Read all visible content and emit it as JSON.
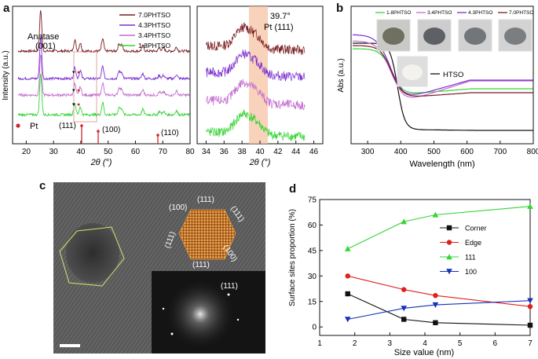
{
  "panels": {
    "a": "a",
    "b": "b",
    "c": "c",
    "d": "d"
  },
  "panel_a": {
    "ylabel": "Intensity (a.u.)",
    "xlabel": "2θ (°)",
    "xticks": [
      "20",
      "30",
      "40",
      "50",
      "60",
      "70",
      "80"
    ],
    "legend": [
      "7.0PHTSO",
      "4.3PHTSO",
      "3.4PHTSO",
      "1.8PHTSO"
    ],
    "anatase_label": "Anatase",
    "anatase_plane": "(001)",
    "pt_label": "Pt",
    "pt_planes": [
      "(111)",
      "(100)",
      "(110)"
    ]
  },
  "panel_a2": {
    "xlabel": "2θ (°)",
    "xticks": [
      "34",
      "36",
      "38",
      "40",
      "42",
      "44",
      "46"
    ],
    "peak_label": "39.7°",
    "peak_plane": "Pt (111)"
  },
  "panel_b": {
    "ylabel": "Abs (a.u.)",
    "xlabel": "Wavelength (nm)",
    "xticks": [
      "300",
      "400",
      "500",
      "600",
      "700",
      "800"
    ],
    "legend": [
      "1.8PHTSO",
      "3.4PHTSO",
      "4.3PHTSO",
      "7.0PHTSO"
    ],
    "htso_label": "HTSO"
  },
  "panel_c": {
    "facets": [
      "(100)",
      "(111)",
      "(111)",
      "(100)",
      "(111)",
      "(111)"
    ],
    "fft_label": "(111)"
  },
  "chart_data": [
    {
      "type": "line",
      "panel": "d",
      "xlabel": "Size value (nm)",
      "ylabel": "Surface sites proportion (%)",
      "xlim": [
        1,
        7
      ],
      "ylim": [
        -5,
        75
      ],
      "xticks": [
        "1",
        "2",
        "3",
        "4",
        "5",
        "6",
        "7"
      ],
      "yticks": [
        "0",
        "15",
        "30",
        "45",
        "60",
        "75"
      ],
      "x": [
        1.8,
        3.4,
        4.3,
        7.0
      ],
      "series": [
        {
          "name": "Corner",
          "values": [
            19.5,
            4.5,
            2.5,
            1.0
          ],
          "color": "#111111",
          "marker": "square"
        },
        {
          "name": "Edge",
          "values": [
            30,
            22,
            18.5,
            12
          ],
          "color": "#e0201b",
          "marker": "circle"
        },
        {
          "name": "111",
          "values": [
            46,
            62,
            66,
            71
          ],
          "color": "#35d435",
          "marker": "triangle-up"
        },
        {
          "name": "100",
          "values": [
            4.5,
            11,
            13,
            15.5
          ],
          "color": "#1530b8",
          "marker": "triangle-down"
        }
      ],
      "legend_position": "center-right"
    }
  ]
}
